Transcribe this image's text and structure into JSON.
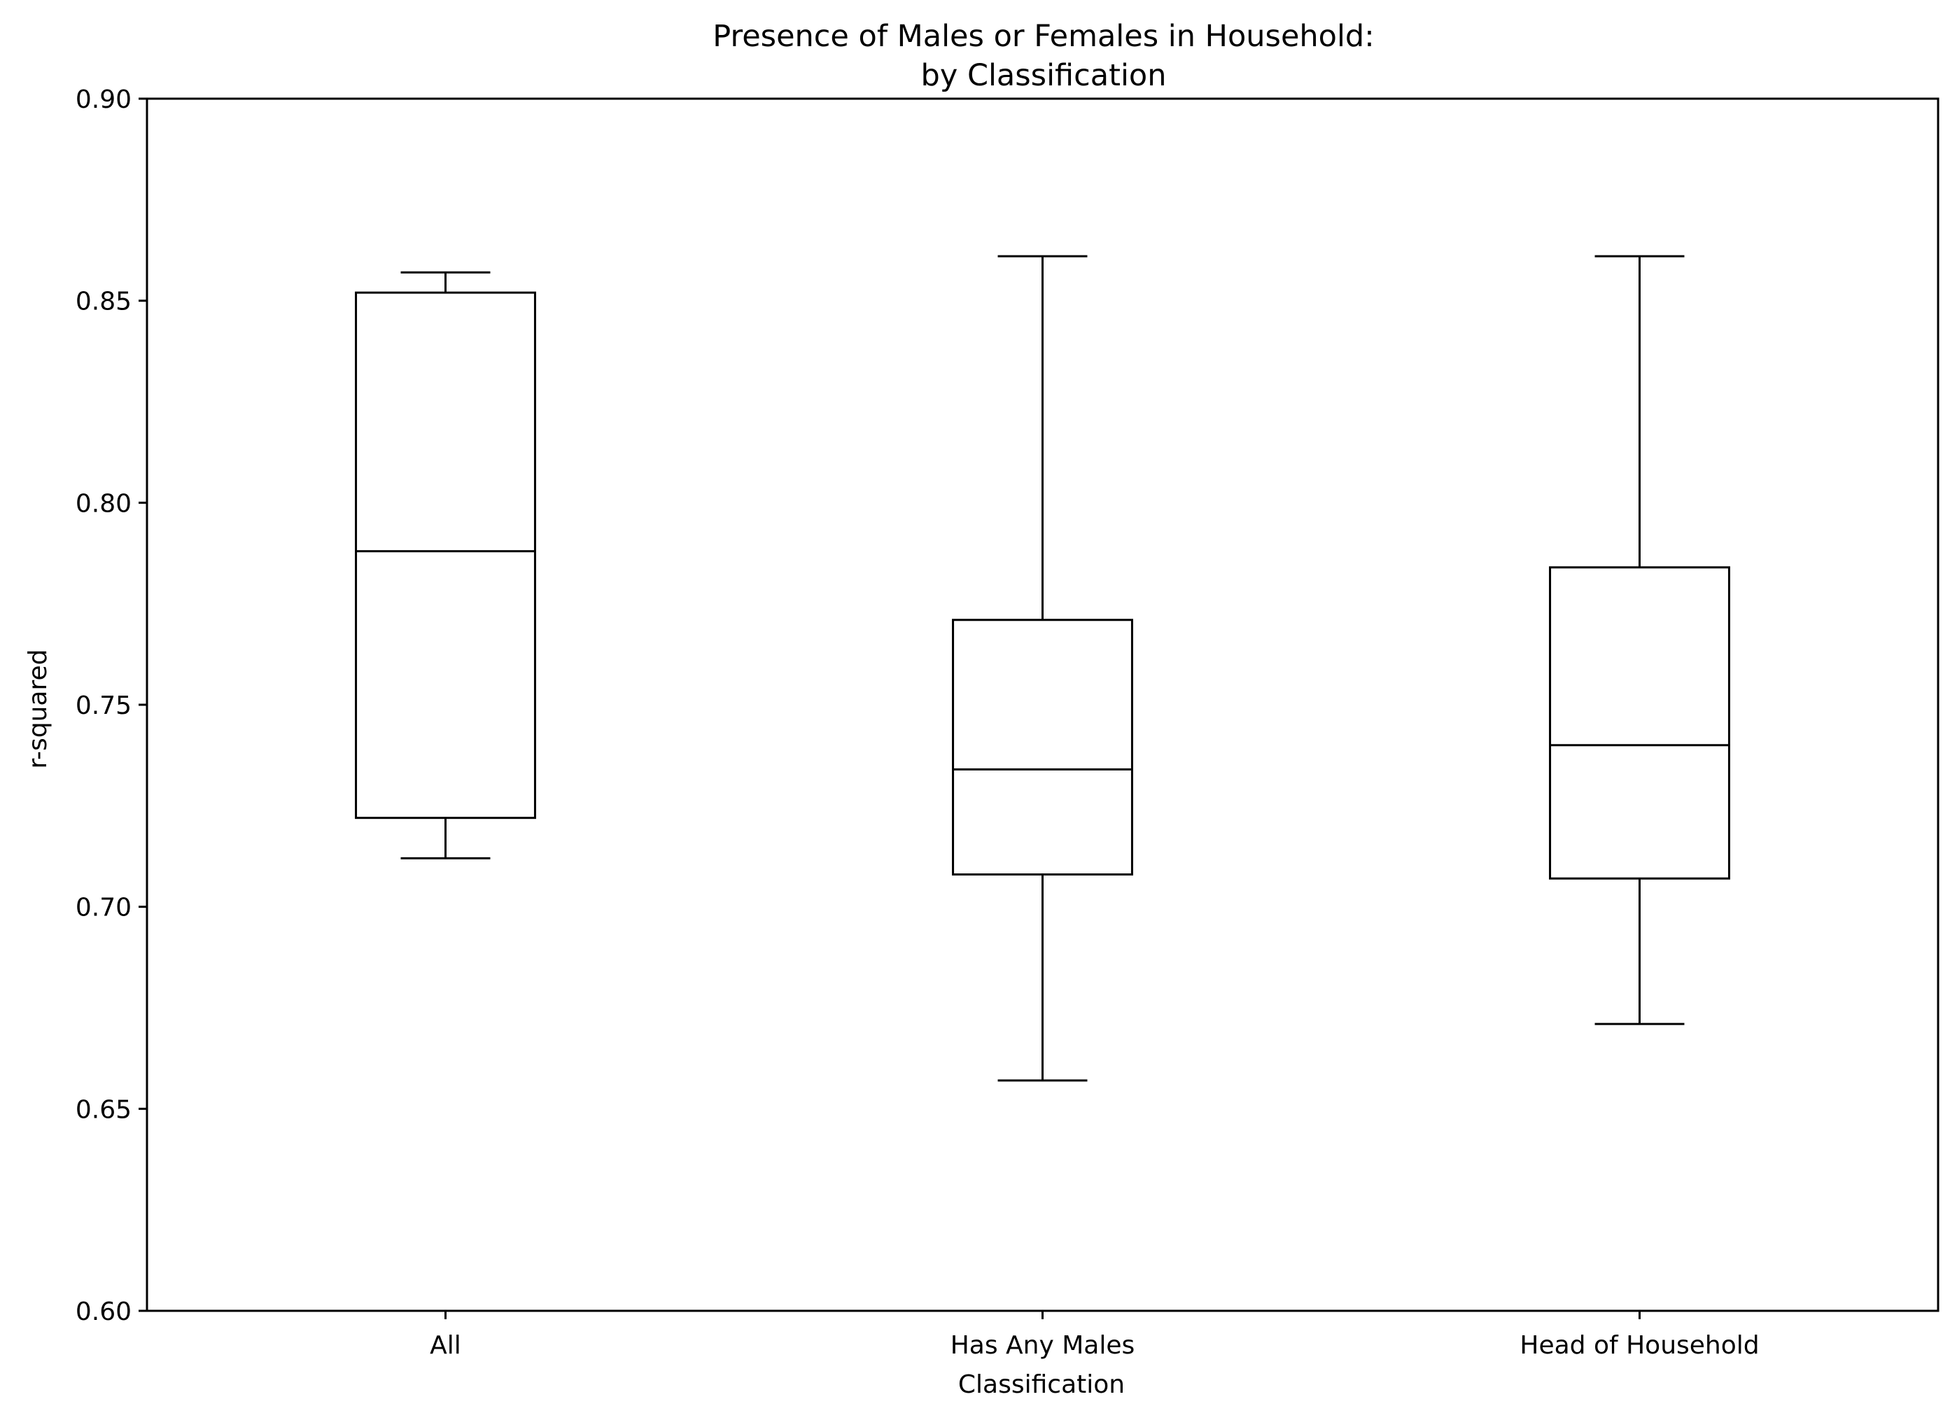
{
  "chart_data": {
    "type": "box",
    "title": "Presence of Males or Females in Household:",
    "subtitle": "by Classification",
    "xlabel": "Classification",
    "ylabel": "r-squared",
    "ylim": [
      0.6,
      0.9
    ],
    "yticks": [
      "0.60",
      "0.65",
      "0.70",
      "0.75",
      "0.80",
      "0.85",
      "0.90"
    ],
    "categories": [
      "All",
      "Has Any Males",
      "Head of Household"
    ],
    "boxes": [
      {
        "category": "All",
        "whisker_low": 0.712,
        "q1": 0.722,
        "median": 0.788,
        "q3": 0.852,
        "whisker_high": 0.857
      },
      {
        "category": "Has Any Males",
        "whisker_low": 0.657,
        "q1": 0.708,
        "median": 0.734,
        "q3": 0.771,
        "whisker_high": 0.861
      },
      {
        "category": "Head of Household",
        "whisker_low": 0.671,
        "q1": 0.707,
        "median": 0.74,
        "q3": 0.784,
        "whisker_high": 0.861
      }
    ],
    "grid": false,
    "legend": "none",
    "colors": {
      "line": "#000000",
      "box_fill": "#ffffff",
      "background": "#ffffff"
    }
  }
}
